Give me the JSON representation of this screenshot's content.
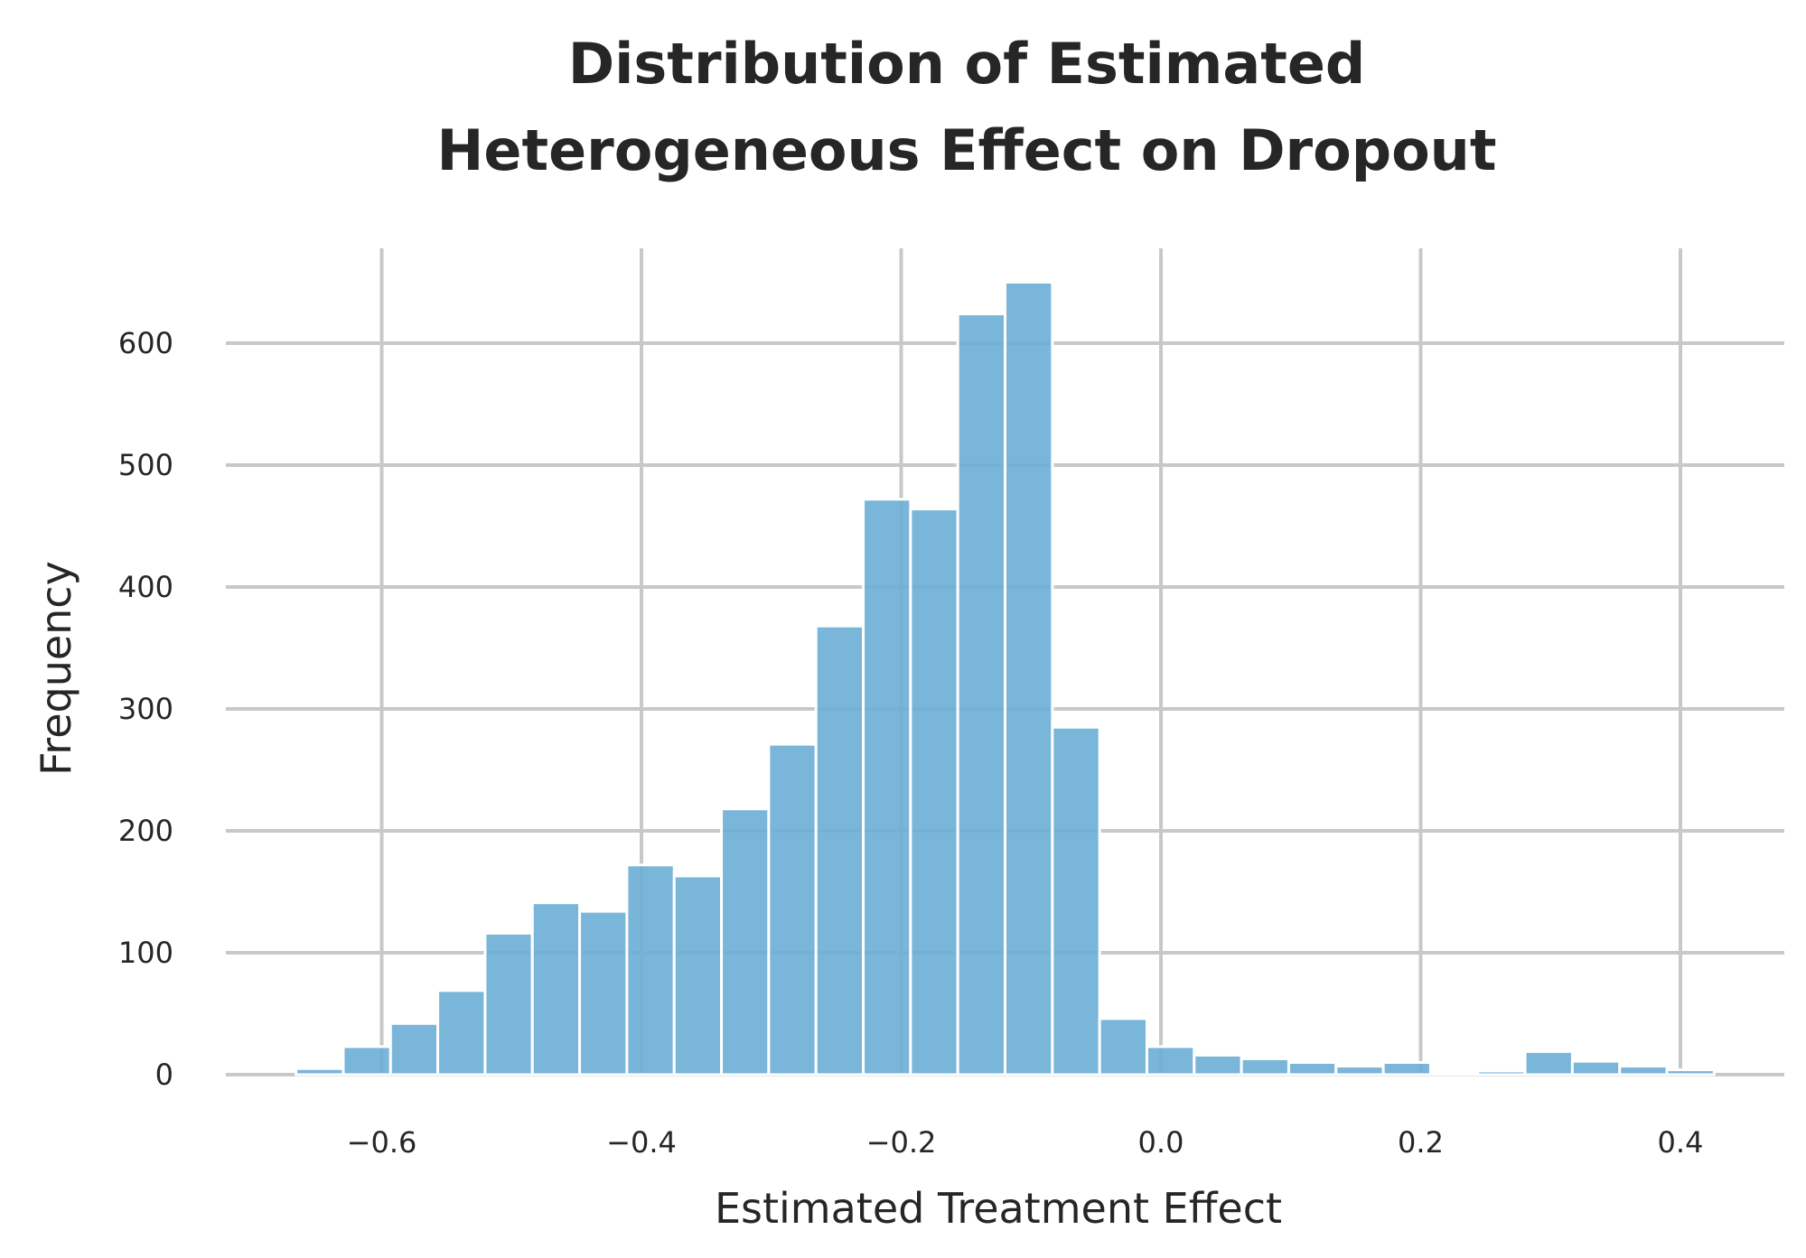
{
  "chart_data": {
    "type": "bar",
    "title_lines": [
      "Distribution of Estimated",
      "Heterogeneous Effect on Dropout"
    ],
    "xlabel": "Estimated Treatment Effect",
    "ylabel": "Frequency",
    "xlim": [
      -0.72,
      0.48
    ],
    "ylim": [
      0,
      680
    ],
    "x_ticks": [
      -0.6,
      -0.4,
      -0.2,
      0.0,
      0.2,
      0.4
    ],
    "x_tick_labels": [
      "−0.6",
      "−0.4",
      "−0.2",
      "0.0",
      "0.2",
      "0.4"
    ],
    "y_ticks": [
      0,
      100,
      200,
      300,
      400,
      500,
      600
    ],
    "y_tick_labels": [
      "0",
      "100",
      "200",
      "300",
      "400",
      "500",
      "600"
    ],
    "grid": true,
    "bin_width": 0.0364,
    "bins": [
      {
        "start": -0.666,
        "value": 5
      },
      {
        "start": -0.6296,
        "value": 23
      },
      {
        "start": -0.5932,
        "value": 42
      },
      {
        "start": -0.5568,
        "value": 69
      },
      {
        "start": -0.5204,
        "value": 116
      },
      {
        "start": -0.484,
        "value": 141
      },
      {
        "start": -0.4476,
        "value": 134
      },
      {
        "start": -0.4112,
        "value": 172
      },
      {
        "start": -0.3748,
        "value": 163
      },
      {
        "start": -0.3384,
        "value": 218
      },
      {
        "start": -0.302,
        "value": 271
      },
      {
        "start": -0.2656,
        "value": 368
      },
      {
        "start": -0.2292,
        "value": 472
      },
      {
        "start": -0.1928,
        "value": 464
      },
      {
        "start": -0.1564,
        "value": 624
      },
      {
        "start": -0.12,
        "value": 650
      },
      {
        "start": -0.0836,
        "value": 285
      },
      {
        "start": -0.0472,
        "value": 46
      },
      {
        "start": -0.0108,
        "value": 23
      },
      {
        "start": 0.0256,
        "value": 16
      },
      {
        "start": 0.062,
        "value": 13
      },
      {
        "start": 0.0984,
        "value": 10
      },
      {
        "start": 0.1348,
        "value": 7
      },
      {
        "start": 0.1712,
        "value": 10
      },
      {
        "start": 0.2076,
        "value": 2
      },
      {
        "start": 0.244,
        "value": 3
      },
      {
        "start": 0.2804,
        "value": 19
      },
      {
        "start": 0.3168,
        "value": 11
      },
      {
        "start": 0.3532,
        "value": 7
      },
      {
        "start": 0.3896,
        "value": 4
      }
    ],
    "colors": {
      "bar": "#6baed6",
      "grid": "#c8c8c8",
      "text": "#262626"
    }
  }
}
